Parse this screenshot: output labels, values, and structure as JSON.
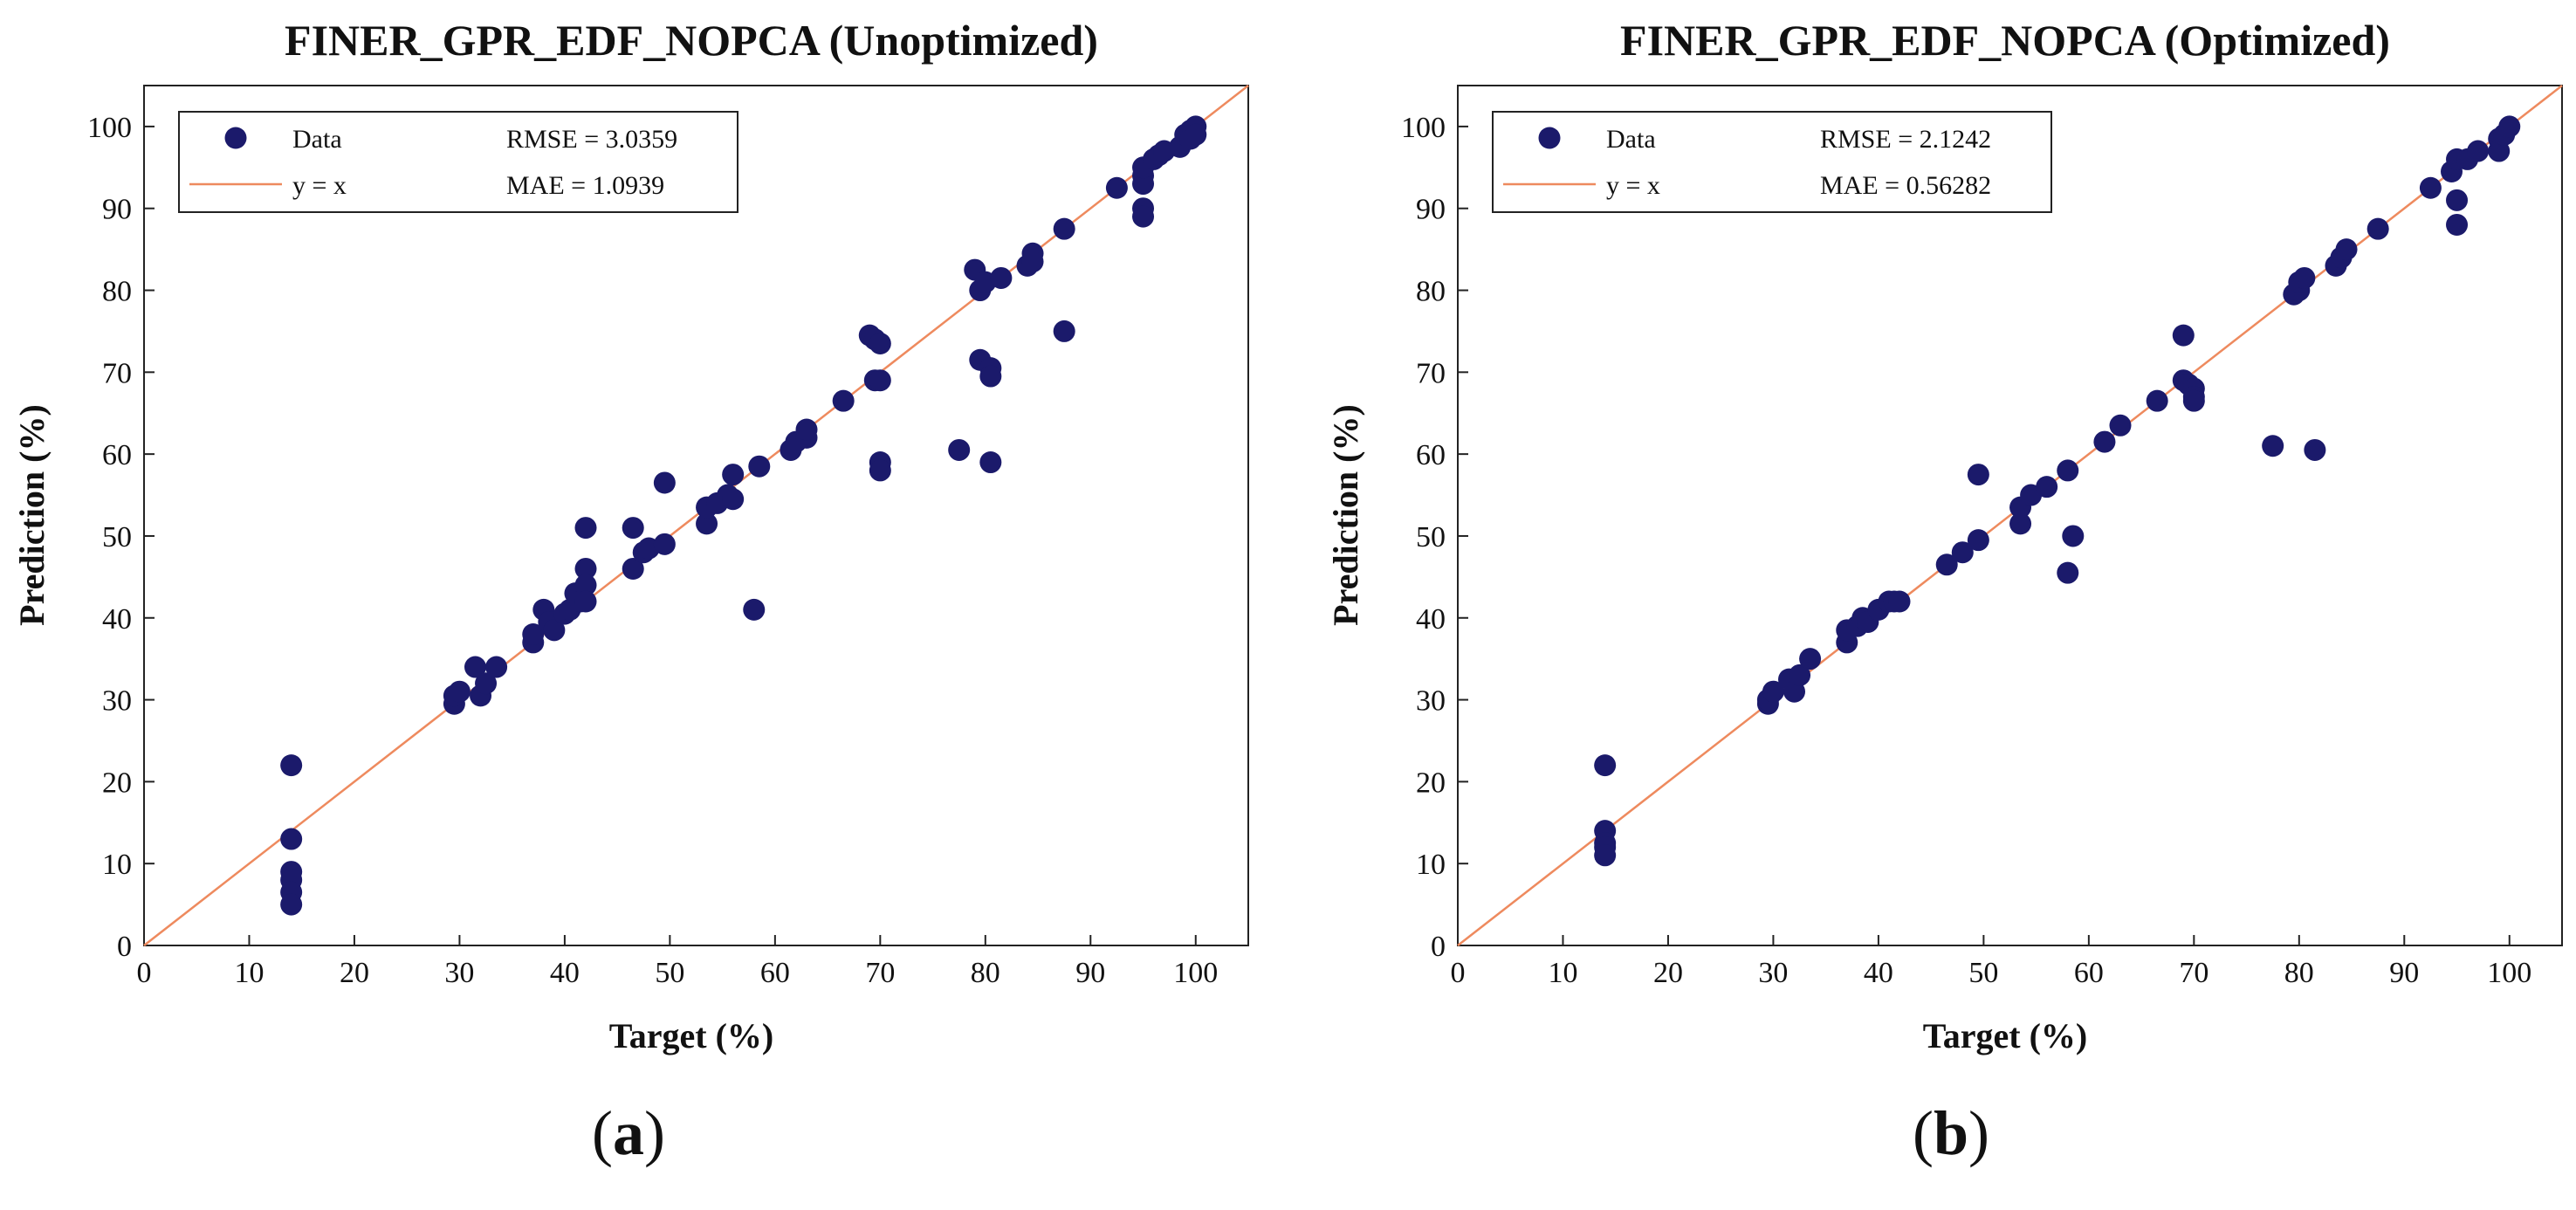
{
  "colors": {
    "marker": "#1b1a6b",
    "line": "#ee8a5e",
    "axis": "#222222"
  },
  "chart_data": [
    {
      "type": "scatter",
      "title": "FINER_GPR_EDF_NOPCA (Unoptimized)",
      "xlabel": "Target (%)",
      "ylabel": "Prediction (%)",
      "xlim": [
        0,
        105
      ],
      "ylim": [
        0,
        105
      ],
      "xticks": [
        0,
        10,
        20,
        30,
        40,
        50,
        60,
        70,
        80,
        90,
        100
      ],
      "yticks": [
        0,
        10,
        20,
        30,
        40,
        50,
        60,
        70,
        80,
        90,
        100
      ],
      "panel_label": {
        "open": "(",
        "letter": "a",
        "close": ")"
      },
      "legend": {
        "position": "top-left",
        "data_label": "Data",
        "line_label": "y = x",
        "rmse": "RMSE = 3.0359",
        "mae": "MAE = 1.0939"
      },
      "reference_line": {
        "label": "y = x",
        "from": [
          0,
          0
        ],
        "to": [
          105,
          105
        ]
      },
      "series": [
        {
          "name": "Data",
          "x": [
            14,
            14,
            14,
            14,
            14,
            14,
            29.5,
            29.5,
            30,
            31.5,
            32,
            32.5,
            33.5,
            37,
            37,
            38,
            38.5,
            39,
            40,
            40.5,
            41,
            41.5,
            42,
            42,
            42,
            42,
            46.5,
            46.5,
            47.5,
            48,
            49.5,
            49.5,
            53.5,
            53.5,
            54.5,
            55.5,
            56,
            56,
            58,
            58.5,
            61.5,
            62,
            63,
            63,
            66.5,
            69,
            69.5,
            69.5,
            70,
            70,
            70,
            70,
            77.5,
            79,
            79.5,
            79.5,
            80,
            80.5,
            80.5,
            80.5,
            81.5,
            84,
            84.5,
            84.5,
            87.5,
            87.5,
            92.5,
            95,
            95,
            95,
            95,
            95,
            96,
            96.5,
            97,
            98.5,
            99,
            99.5,
            99.5,
            100,
            100
          ],
          "y": [
            22,
            13,
            9,
            8,
            6.5,
            5,
            29.5,
            30.5,
            31,
            34,
            30.5,
            32,
            34,
            37,
            38,
            41,
            39.5,
            38.5,
            40.5,
            41,
            43,
            42,
            51,
            46,
            44,
            42,
            51,
            46,
            48,
            48.5,
            49,
            56.5,
            51.5,
            53.5,
            54,
            55,
            54.5,
            57.5,
            41,
            58.5,
            60.5,
            61.5,
            62,
            63,
            66.5,
            74.5,
            69,
            74,
            69,
            73.5,
            59,
            58,
            60.5,
            82.5,
            71.5,
            80,
            81,
            70.5,
            69.5,
            59,
            81.5,
            83,
            84.5,
            83.5,
            87.5,
            75,
            92.5,
            94,
            93,
            90,
            89,
            95,
            96,
            96.5,
            97,
            97.5,
            99,
            99.5,
            98.5,
            100,
            99
          ]
        }
      ]
    },
    {
      "type": "scatter",
      "title": "FINER_GPR_EDF_NOPCA (Optimized)",
      "xlabel": "Target (%)",
      "ylabel": "Prediction (%)",
      "xlim": [
        0,
        105
      ],
      "ylim": [
        0,
        105
      ],
      "xticks": [
        0,
        10,
        20,
        30,
        40,
        50,
        60,
        70,
        80,
        90,
        100
      ],
      "yticks": [
        0,
        10,
        20,
        30,
        40,
        50,
        60,
        70,
        80,
        90,
        100
      ],
      "panel_label": {
        "open": "(",
        "letter": "b",
        "close": ")"
      },
      "legend": {
        "position": "top-left",
        "data_label": "Data",
        "line_label": "y = x",
        "rmse": "RMSE = 2.1242",
        "mae": "MAE = 0.56282"
      },
      "reference_line": {
        "label": "y = x",
        "from": [
          0,
          0
        ],
        "to": [
          105,
          105
        ]
      },
      "series": [
        {
          "name": "Data",
          "x": [
            14,
            14,
            14,
            14,
            14,
            29.5,
            29.5,
            30,
            31.5,
            32,
            32.5,
            33.5,
            37,
            37,
            38,
            38.5,
            39,
            40,
            41,
            41.5,
            42,
            46.5,
            48,
            49.5,
            49.5,
            53.5,
            53.5,
            54.5,
            56,
            58,
            58,
            58.5,
            61.5,
            63,
            66.5,
            69,
            69,
            69.5,
            70,
            70,
            70,
            77.5,
            79.5,
            80,
            80,
            80.5,
            81.5,
            83.5,
            84,
            84.5,
            87.5,
            92.5,
            94.5,
            95,
            95,
            95,
            96,
            97,
            99,
            99,
            99.5,
            100
          ],
          "y": [
            22,
            14,
            12.5,
            12,
            11,
            29.5,
            30,
            31,
            32.5,
            31,
            33,
            35,
            37,
            38.5,
            39,
            40,
            39.5,
            41,
            42,
            42,
            42,
            46.5,
            48,
            49.5,
            57.5,
            51.5,
            53.5,
            55,
            56,
            58,
            45.5,
            50,
            61.5,
            63.5,
            66.5,
            74.5,
            69,
            68.5,
            68,
            67,
            66.5,
            61,
            79.5,
            80,
            81,
            81.5,
            60.5,
            83,
            84,
            85,
            87.5,
            92.5,
            94.5,
            96,
            91,
            88,
            96,
            97,
            98.5,
            97,
            99,
            100
          ]
        }
      ]
    }
  ]
}
